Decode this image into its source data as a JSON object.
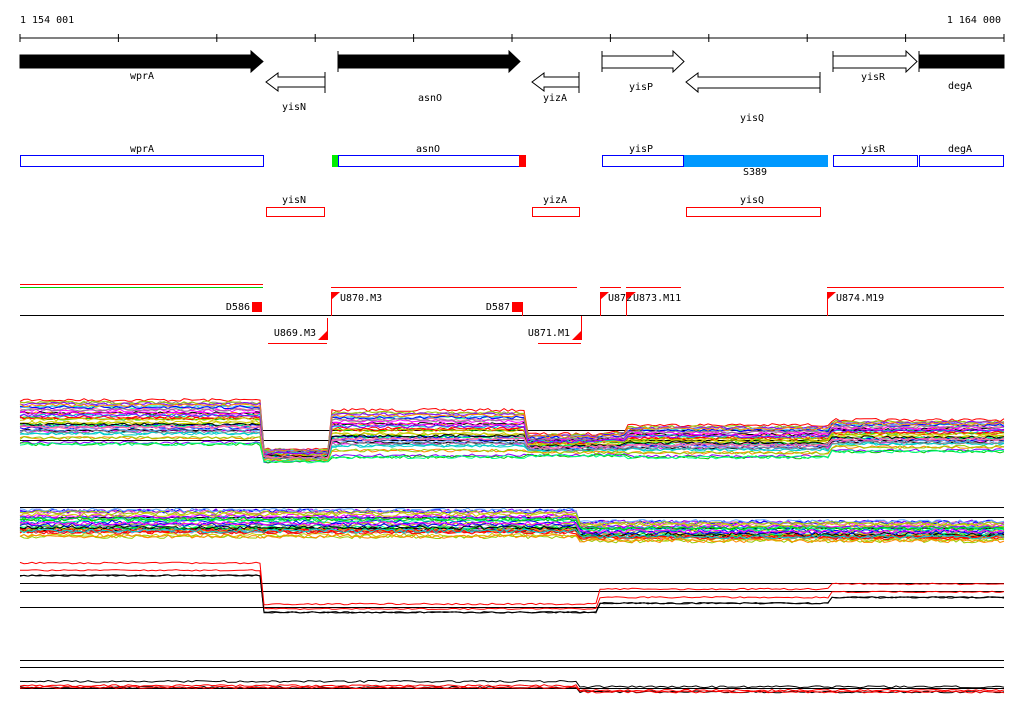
{
  "ruler": {
    "start_label": "1 154 001",
    "end_label": "1 164 000"
  },
  "genes": [
    {
      "name": "wprA",
      "strand": "+",
      "style": "filled"
    },
    {
      "name": "yisN",
      "strand": "-",
      "style": "open"
    },
    {
      "name": "asnO",
      "strand": "+",
      "style": "filled"
    },
    {
      "name": "yizA",
      "strand": "-",
      "style": "open"
    },
    {
      "name": "yisP",
      "strand": "+",
      "style": "open"
    },
    {
      "name": "yisQ",
      "strand": "-",
      "style": "open"
    },
    {
      "name": "yisR",
      "strand": "+",
      "style": "open"
    },
    {
      "name": "degA",
      "strand": "+",
      "style": "filled"
    }
  ],
  "forward_features": [
    "wprA",
    "asnO",
    "yisP",
    "S389",
    "yisR",
    "degA"
  ],
  "reverse_features": [
    "yisN",
    "yizA",
    "yisQ"
  ],
  "regulatory_sites": [
    "D586",
    "U870.M3",
    "D587",
    "U869.M3",
    "U871.M1",
    "U872",
    "U873.M11",
    "U874.M19"
  ],
  "colors": {
    "feature_outline": "#0000ff",
    "reverse_outline": "#ff0000",
    "segment": "#0099ff",
    "start_marker": "#00ee00",
    "end_marker": "#ff0000",
    "site": "#ff0000"
  }
}
